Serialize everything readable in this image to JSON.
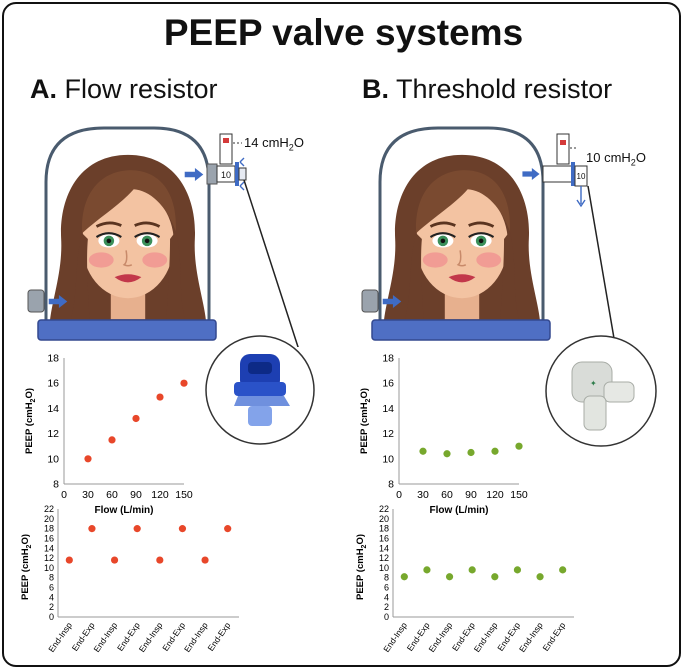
{
  "title": "PEEP valve systems",
  "panels": [
    {
      "letter": "A.",
      "label": "Flow resistor",
      "pressure_value": "14 cmH",
      "pressure_sub": "2",
      "pressure_unit": "O",
      "valve_number": "10",
      "marker_color": "#e8472a"
    },
    {
      "letter": "B.",
      "label": "Threshold resistor",
      "pressure_value": "10 cmH",
      "pressure_sub": "2",
      "pressure_unit": "O",
      "valve_number": "10",
      "marker_color": "#77a82d"
    }
  ],
  "chart_data": [
    {
      "type": "scatter",
      "panel": "A",
      "xlabel": "Flow (L/min)",
      "ylabel": "PEEP (cmH2O)",
      "xlim": [
        0,
        150
      ],
      "ylim": [
        8,
        18
      ],
      "xticks": [
        "0",
        "30",
        "60",
        "90",
        "120",
        "150"
      ],
      "yticks": [
        "8",
        "10",
        "12",
        "14",
        "16",
        "18"
      ],
      "x": [
        30,
        60,
        90,
        120,
        150
      ],
      "y": [
        10,
        11.5,
        13.2,
        14.9,
        16
      ],
      "color": "#e8472a"
    },
    {
      "type": "scatter",
      "panel": "A",
      "xlabel": "",
      "ylabel": "PEEP (cmH2O)",
      "ylim": [
        0,
        22
      ],
      "yticks": [
        "0",
        "2",
        "4",
        "6",
        "8",
        "10",
        "12",
        "14",
        "16",
        "18",
        "20",
        "22"
      ],
      "categories": [
        "End-Insp",
        "End-Exp",
        "End-Insp",
        "End-Exp",
        "End-Insp",
        "End-Exp",
        "End-Insp",
        "End-Exp"
      ],
      "values": [
        11.6,
        18,
        11.6,
        18,
        11.6,
        18,
        11.6,
        18
      ],
      "color": "#e8472a"
    },
    {
      "type": "scatter",
      "panel": "B",
      "xlabel": "Flow (L/min)",
      "ylabel": "PEEP (cmH2O)",
      "xlim": [
        0,
        150
      ],
      "ylim": [
        8,
        18
      ],
      "xticks": [
        "0",
        "30",
        "60",
        "90",
        "120",
        "150"
      ],
      "yticks": [
        "8",
        "10",
        "12",
        "14",
        "16",
        "18"
      ],
      "x": [
        30,
        60,
        90,
        120,
        150
      ],
      "y": [
        10.6,
        10.4,
        10.5,
        10.6,
        11
      ],
      "color": "#77a82d"
    },
    {
      "type": "scatter",
      "panel": "B",
      "xlabel": "",
      "ylabel": "PEEP (cmH2O)",
      "ylim": [
        0,
        22
      ],
      "yticks": [
        "0",
        "2",
        "4",
        "6",
        "8",
        "10",
        "12",
        "14",
        "16",
        "18",
        "20",
        "22"
      ],
      "categories": [
        "End-Insp",
        "End-Exp",
        "End-Insp",
        "End-Exp",
        "End-Insp",
        "End-Exp",
        "End-Insp",
        "End-Exp"
      ],
      "values": [
        8.2,
        9.6,
        8.2,
        9.6,
        8.2,
        9.6,
        8.2,
        9.6
      ],
      "color": "#77a82d"
    }
  ]
}
